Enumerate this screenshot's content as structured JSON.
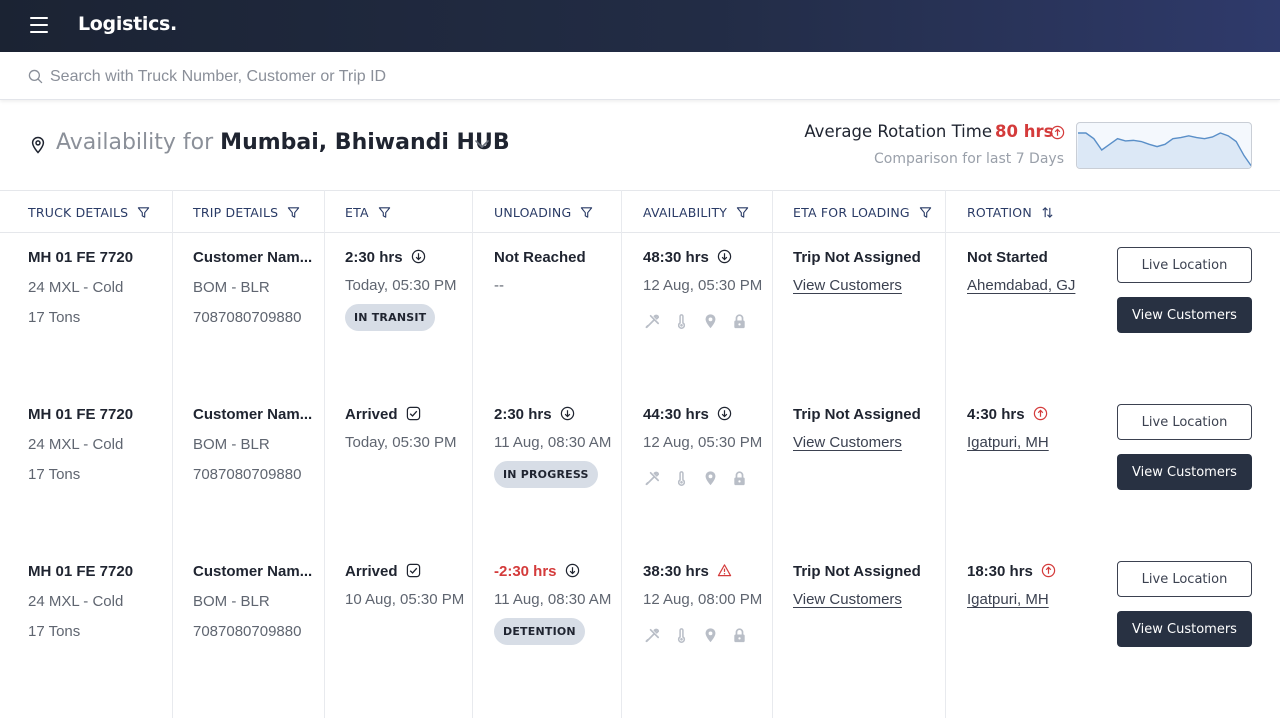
{
  "app": {
    "title": "Logistics."
  },
  "search": {
    "placeholder": "Search with Truck Number, Customer or Trip ID"
  },
  "availability": {
    "prefix": "Availability for",
    "hub": "Mumbai, Bhiwandi HUB"
  },
  "rotation_summary": {
    "label": "Average Rotation Time",
    "value": "80 hrs",
    "subtitle": "Comparison for last 7 Days",
    "trend": "up",
    "sparkline_values": [
      6,
      6,
      5,
      3,
      4,
      5,
      4.6,
      4.7,
      4.5,
      4,
      3.6,
      4,
      5,
      5.2,
      5.5,
      5.2,
      5,
      5.3,
      6,
      5.5,
      4.5,
      2,
      0
    ]
  },
  "columns": [
    {
      "label": "TRUCK DETAILS",
      "filter": true
    },
    {
      "label": "TRIP DETAILS",
      "filter": true
    },
    {
      "label": "ETA",
      "filter": true
    },
    {
      "label": "UNLOADING",
      "filter": true
    },
    {
      "label": "AVAILABILITY",
      "filter": true
    },
    {
      "label": "ETA FOR LOADING",
      "filter": true
    },
    {
      "label": "ROTATION",
      "sort": true
    }
  ],
  "rows": [
    {
      "truck": {
        "number": "MH 01 FE 7720",
        "type": "24 MXL - Cold",
        "capacity": "17 Tons"
      },
      "trip": {
        "customer": "Customer Nam...",
        "route": "BOM - BLR",
        "trip_id": "7087080709880"
      },
      "eta": {
        "value": "2:30 hrs",
        "icon": "arrow-down-circle-icon",
        "time": "Today, 05:30 PM",
        "status": "IN TRANSIT"
      },
      "unloading": {
        "value": "Not Reached",
        "time": "--",
        "status": ""
      },
      "availability": {
        "value": "48:30 hrs",
        "icon": "arrow-down-circle-icon",
        "time": "12 Aug, 05:30 PM"
      },
      "loading": {
        "status": "Trip Not Assigned",
        "link": "View Customers"
      },
      "rotation": {
        "value": "Not Started",
        "location": "Ahemdabad, GJ",
        "icon": ""
      },
      "actions": {
        "primary": "Live Location",
        "secondary": "View Customers"
      }
    },
    {
      "truck": {
        "number": "MH 01 FE 7720",
        "type": "24 MXL - Cold",
        "capacity": "17 Tons"
      },
      "trip": {
        "customer": "Customer Nam...",
        "route": "BOM - BLR",
        "trip_id": "7087080709880"
      },
      "eta": {
        "value": "Arrived",
        "icon": "check-square-icon",
        "time": "Today, 05:30 PM",
        "status": ""
      },
      "unloading": {
        "value": "2:30 hrs",
        "time": "11 Aug, 08:30 AM",
        "status": "IN PROGRESS"
      },
      "availability": {
        "value": "44:30 hrs",
        "icon": "arrow-down-circle-icon",
        "time": "12 Aug, 05:30 PM"
      },
      "loading": {
        "status": "Trip Not Assigned",
        "link": "View Customers"
      },
      "rotation": {
        "value": "4:30 hrs",
        "location": "Igatpuri, MH",
        "icon": "arrow-up-circle-icon"
      },
      "actions": {
        "primary": "Live Location",
        "secondary": "View Customers"
      }
    },
    {
      "truck": {
        "number": "MH 01 FE 7720",
        "type": "24 MXL - Cold",
        "capacity": "17 Tons"
      },
      "trip": {
        "customer": "Customer Nam...",
        "route": "BOM - BLR",
        "trip_id": "7087080709880"
      },
      "eta": {
        "value": "Arrived",
        "icon": "check-square-icon",
        "time": "10 Aug, 05:30 PM",
        "status": ""
      },
      "unloading": {
        "value": "-2:30 hrs",
        "time": "11 Aug, 08:30 AM",
        "status": "DETENTION"
      },
      "availability": {
        "value": "38:30 hrs",
        "icon": "warning-triangle-icon",
        "time": "12 Aug, 08:00 PM"
      },
      "loading": {
        "status": "Trip Not Assigned",
        "link": "View Customers"
      },
      "rotation": {
        "value": "18:30 hrs",
        "location": "Igatpuri, MH",
        "icon": "arrow-up-circle-icon"
      },
      "actions": {
        "primary": "Live Location",
        "secondary": "View Customers"
      }
    }
  ],
  "colors": {
    "accent_red": "#d43b3b",
    "header_dark": "#1b2333",
    "button_dark": "#283142",
    "badge_bg": "#d7dde6",
    "sparkline": "#5a8fc8"
  }
}
